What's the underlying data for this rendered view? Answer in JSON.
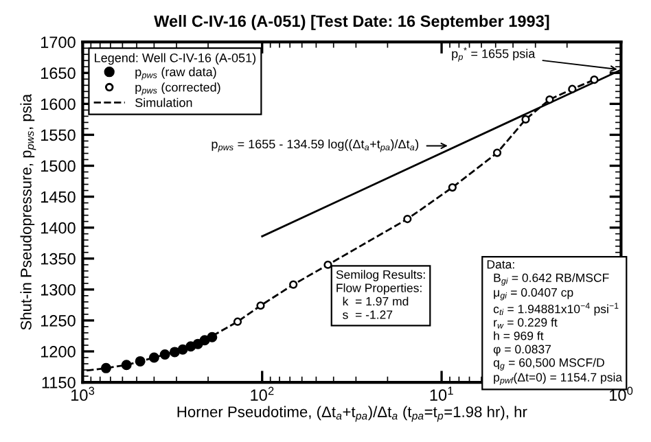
{
  "chart_data": {
    "type": "scatter",
    "title": "Well C-IV-16 (A-051) [Test Date: 16 September 1993]",
    "xlabel": "Horner Pseudotime, (Δt$_{a}$+t$_{pa}$)/Δt$_{a}$ (t$_{pa}$=t$_{p}$=1.98 hr), hr",
    "ylabel": "Shut-in Pseudopressure, p$_{pws}$, psia",
    "legend_title": "Legend: Well C-IV-16 (A-051)",
    "log": "x",
    "xlim": [
      1000,
      1
    ],
    "xticks": [
      {
        "value": 1000,
        "label": "10$^{3}$"
      },
      {
        "value": 100,
        "label": "10$^{2}$"
      },
      {
        "value": 10,
        "label": "10$^{1}$"
      },
      {
        "value": 1,
        "label": "10$^{0}$"
      }
    ],
    "ylim": [
      1150,
      1700
    ],
    "yticks": [
      1150,
      1200,
      1250,
      1300,
      1350,
      1400,
      1450,
      1500,
      1550,
      1600,
      1650,
      1700
    ],
    "grid": false,
    "legend": "top left",
    "series": [
      {
        "name": "p$_{pws}$ (raw data)",
        "type": "scatter",
        "marker": "circle",
        "color": "#000000",
        "x": [
          741,
          570,
          478,
          400,
          348,
          307,
          277,
          250,
          228,
          209,
          190
        ],
        "values": [
          1173,
          1178,
          1184,
          1190,
          1195,
          1199,
          1203,
          1208,
          1212,
          1218,
          1223
        ]
      },
      {
        "name": "p$_{pws}$ (corrected)",
        "type": "scatter",
        "marker": "circle",
        "color": "#000000",
        "x": [
          137,
          102,
          67,
          43,
          15.5,
          8.7,
          4.9,
          3.4,
          2.5,
          1.87,
          1.41
        ],
        "values": [
          1248,
          1274,
          1308,
          1340,
          1414,
          1465,
          1521,
          1575,
          1607,
          1624,
          1639
        ]
      },
      {
        "name": "Simulation",
        "type": "line",
        "line_style": "dashed",
        "marker": "none",
        "color": "#000000",
        "x": [
          950,
          741,
          570,
          400,
          277,
          209,
          137,
          102,
          67,
          43,
          15.5,
          8.7,
          4.9,
          3.4,
          2.5,
          1.87,
          1.41
        ],
        "values": [
          1169,
          1173,
          1178,
          1190,
          1203,
          1218,
          1248,
          1274,
          1308,
          1340,
          1414,
          1465,
          1521,
          1575,
          1607,
          1624,
          1639
        ]
      },
      {
        "type": "line",
        "line_style": "solid",
        "marker": "none",
        "color": "#000000",
        "x": [
          100,
          1
        ],
        "values": [
          1386,
          1655
        ]
      }
    ],
    "annotations": [
      {
        "text": "p$_{p}$$^{*}$ = 1655 psia",
        "x": 1,
        "y": 1655
      },
      "p$_{pws}$ = 1655 - 134.59 log((Δt$_{a}$+t$_{pa}$)/Δt$_{a}$)",
      "Semilog Results:\nFlow Properties:\n  k  = 1.97 md\n  s  = -1.27",
      "Data:\n  B$_{gi}$ = 0.642 RB/MSCF\n  μ$_{gi}$ = 0.0407 cp\n  c$_{ti}$ = 1.94881x10$^{−4}$ psi$^{−1}$\n  r$_{w}$ = 0.229 ft\n  h = 969 ft\n  φ = 0.0837\n  q$_{g}$ = 60,500 MSCF/D\n  p$_{pwf}$(Δt=0) = 1154.7 psia"
    ]
  }
}
